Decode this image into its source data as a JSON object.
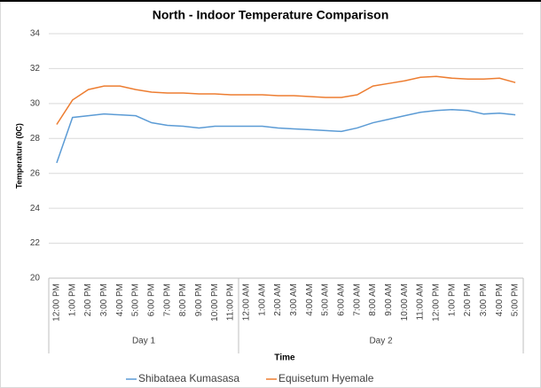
{
  "chart_data": {
    "type": "line",
    "title": "North - Indoor Temperature Comparison",
    "x_label": "Time",
    "y_label": "Temperature (0C)",
    "categories": [
      "12:00 PM",
      "1:00 PM",
      "2:00 PM",
      "3:00 PM",
      "4:00 PM",
      "5:00 PM",
      "6:00 PM",
      "7:00 PM",
      "8:00 PM",
      "9:00 PM",
      "10:00 PM",
      "11:00 PM",
      "12:00 AM",
      "1:00 AM",
      "2:00 AM",
      "3:00 AM",
      "4:00 AM",
      "5:00 AM",
      "6:00 AM",
      "7:00 AM",
      "8:00 AM",
      "9:00 AM",
      "10:00 AM",
      "11:00 AM",
      "12:00 PM",
      "1:00 PM",
      "2:00 PM",
      "3:00 PM",
      "4:00 PM",
      "5:00 PM"
    ],
    "category_groups": [
      {
        "label": "Day 1",
        "count": 12
      },
      {
        "label": "Day 2",
        "count": 18
      }
    ],
    "series": [
      {
        "name": "Shibataea Kumasasa",
        "color": "#5b9bd5",
        "values": [
          26.6,
          29.2,
          29.3,
          29.4,
          29.35,
          29.3,
          28.9,
          28.75,
          28.7,
          28.6,
          28.7,
          28.7,
          28.7,
          28.7,
          28.6,
          28.55,
          28.5,
          28.45,
          28.4,
          28.6,
          28.9,
          29.1,
          29.3,
          29.5,
          29.6,
          29.65,
          29.6,
          29.4,
          29.45,
          29.35
        ]
      },
      {
        "name": "Equisetum Hyemale",
        "color": "#ed7d31",
        "values": [
          28.8,
          30.2,
          30.8,
          31.0,
          31.0,
          30.8,
          30.65,
          30.6,
          30.6,
          30.55,
          30.55,
          30.5,
          30.5,
          30.5,
          30.45,
          30.45,
          30.4,
          30.35,
          30.35,
          30.5,
          31.0,
          31.15,
          31.3,
          31.5,
          31.55,
          31.45,
          31.4,
          31.4,
          31.45,
          31.2
        ]
      }
    ],
    "ylim": [
      20,
      34
    ],
    "yticks": [
      20,
      22,
      24,
      26,
      28,
      30,
      32,
      34
    ],
    "grid": true,
    "legend": "bottom"
  }
}
